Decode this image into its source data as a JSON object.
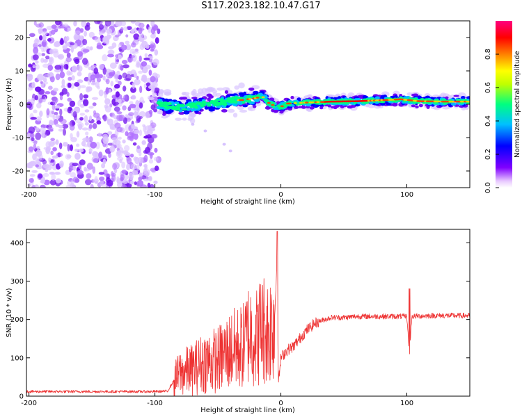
{
  "title": "S117.2023.182.10.47.G17",
  "chart_data": [
    {
      "type": "heatmap",
      "xlabel": "Height of straight line (km)",
      "ylabel": "Frequency (Hz)",
      "xlim": [
        -202,
        150
      ],
      "ylim": [
        -25,
        25
      ],
      "xticks": [
        -200,
        -100,
        0,
        100
      ],
      "yticks": [
        -20,
        -10,
        0,
        10,
        20
      ],
      "colorbar": {
        "label": "Normalized spectral amplitude",
        "range": [
          0,
          1
        ],
        "ticks": [
          "0.0",
          "0.2",
          "0.4",
          "0.6",
          "0.8"
        ],
        "colors": [
          "#ffffff",
          "#8000ff",
          "#0000ff",
          "#00c0ff",
          "#00ff80",
          "#ffff00",
          "#ff8000",
          "#ff0000",
          "#ff0080"
        ]
      },
      "description_regions": [
        {
          "x_range": [
            -200,
            -97
          ],
          "y_range": [
            -25,
            25
          ],
          "level": 0.05
        },
        {
          "x_range": [
            -97,
            150
          ],
          "y_center": 0.5,
          "level": 0.6
        }
      ],
      "centerline": [
        [
          -97,
          0.0
        ],
        [
          -80,
          -1.0
        ],
        [
          -60,
          0.0
        ],
        [
          -40,
          1.0
        ],
        [
          -30,
          1.3
        ],
        [
          -20,
          1.8
        ],
        [
          -15,
          2.5
        ],
        [
          -10,
          0.5
        ],
        [
          -5,
          -0.5
        ],
        [
          0,
          -0.8
        ],
        [
          5,
          0.2
        ],
        [
          20,
          0.5
        ],
        [
          40,
          0.8
        ],
        [
          60,
          0.9
        ],
        [
          80,
          1.2
        ],
        [
          95,
          1.5
        ],
        [
          110,
          0.9
        ],
        [
          130,
          0.8
        ],
        [
          150,
          0.8
        ]
      ]
    },
    {
      "type": "line",
      "xlabel": "Height of straight line (km)",
      "ylabel": "SNR (10 * v/v)",
      "xlim": [
        -202,
        150
      ],
      "ylim": [
        0,
        435
      ],
      "xticks": [
        -200,
        -100,
        0,
        100
      ],
      "yticks": [
        0,
        100,
        200,
        300,
        400
      ],
      "series": [
        {
          "color": "#ee3333",
          "x": [
            -202,
            -180,
            -160,
            -140,
            -120,
            -100,
            -90,
            -85,
            -80,
            -70,
            -60,
            -50,
            -40,
            -30,
            -25,
            -20,
            -15,
            -10,
            -5,
            -3,
            -2,
            0,
            5,
            10,
            15,
            20,
            25,
            30,
            40,
            50,
            60,
            80,
            100,
            102,
            104,
            120,
            140,
            150
          ],
          "y": [
            12,
            12,
            12,
            12,
            12,
            12,
            13,
            40,
            60,
            70,
            90,
            95,
            120,
            130,
            170,
            150,
            180,
            170,
            200,
            360,
            30,
            100,
            120,
            130,
            150,
            170,
            185,
            195,
            205,
            205,
            208,
            208,
            208,
            110,
            208,
            210,
            210,
            210
          ]
        }
      ]
    }
  ]
}
